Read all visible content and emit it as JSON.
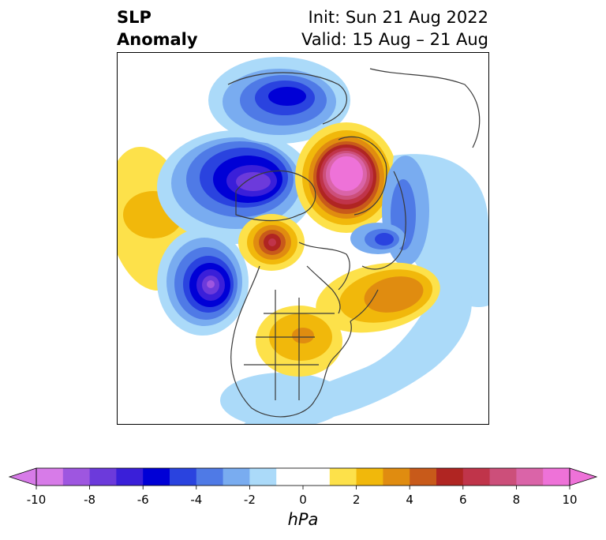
{
  "title": {
    "left_line1": "SLP",
    "left_line2": "Anomaly",
    "right_line1": "Init: Sun 21 Aug 2022",
    "right_line2": "Valid: 15 Aug – 21 Aug"
  },
  "colorbar": {
    "unit": "hPa",
    "min": -10,
    "max": 10,
    "extend": "both",
    "tick_labels": [
      "-10",
      "-8",
      "-6",
      "-4",
      "-2",
      "0",
      "2",
      "4",
      "6",
      "8",
      "10"
    ],
    "bin_colors": [
      "#d77be8",
      "#9e56e0",
      "#6c3adb",
      "#3a1fd9",
      "#0000d6",
      "#2a43df",
      "#4f7ae6",
      "#79acf0",
      "#abdaf9",
      "#ffffff",
      "#ffffff",
      "#fde14a",
      "#f1b80b",
      "#e08c10",
      "#c85a1a",
      "#b02522",
      "#c0344a",
      "#cc4f7a",
      "#da64a8",
      "#ee72d8"
    ],
    "under_color": "#d77be8",
    "over_color": "#ee72d8"
  },
  "map": {
    "projection": "north-polar-stereographic",
    "field": "sea-level-pressure-anomaly",
    "features": [
      {
        "name": "northeast-pacific-positive-anomaly",
        "peak_hpa": 4
      },
      {
        "name": "gulf-of-alaska-negative-anomaly",
        "peak_hpa": -9
      },
      {
        "name": "northwest-canada-positive-anomaly",
        "peak_hpa": 7
      },
      {
        "name": "eastern-siberia-negative-anomaly",
        "peak_hpa": -7
      },
      {
        "name": "siberian-arctic-negative-anomaly",
        "peak_hpa": -6
      },
      {
        "name": "barents-kara-positive-anomaly",
        "peak_hpa": 10
      },
      {
        "name": "europe-negative-anomaly",
        "peak_hpa": -4
      },
      {
        "name": "scandinavia-negative-anomaly",
        "peak_hpa": -5
      },
      {
        "name": "north-atlantic-positive-anomaly",
        "peak_hpa": 5
      },
      {
        "name": "central-north-america-positive-anomaly",
        "peak_hpa": 3
      },
      {
        "name": "subtropical-atlantic-negative-anomaly",
        "peak_hpa": -2
      }
    ]
  }
}
